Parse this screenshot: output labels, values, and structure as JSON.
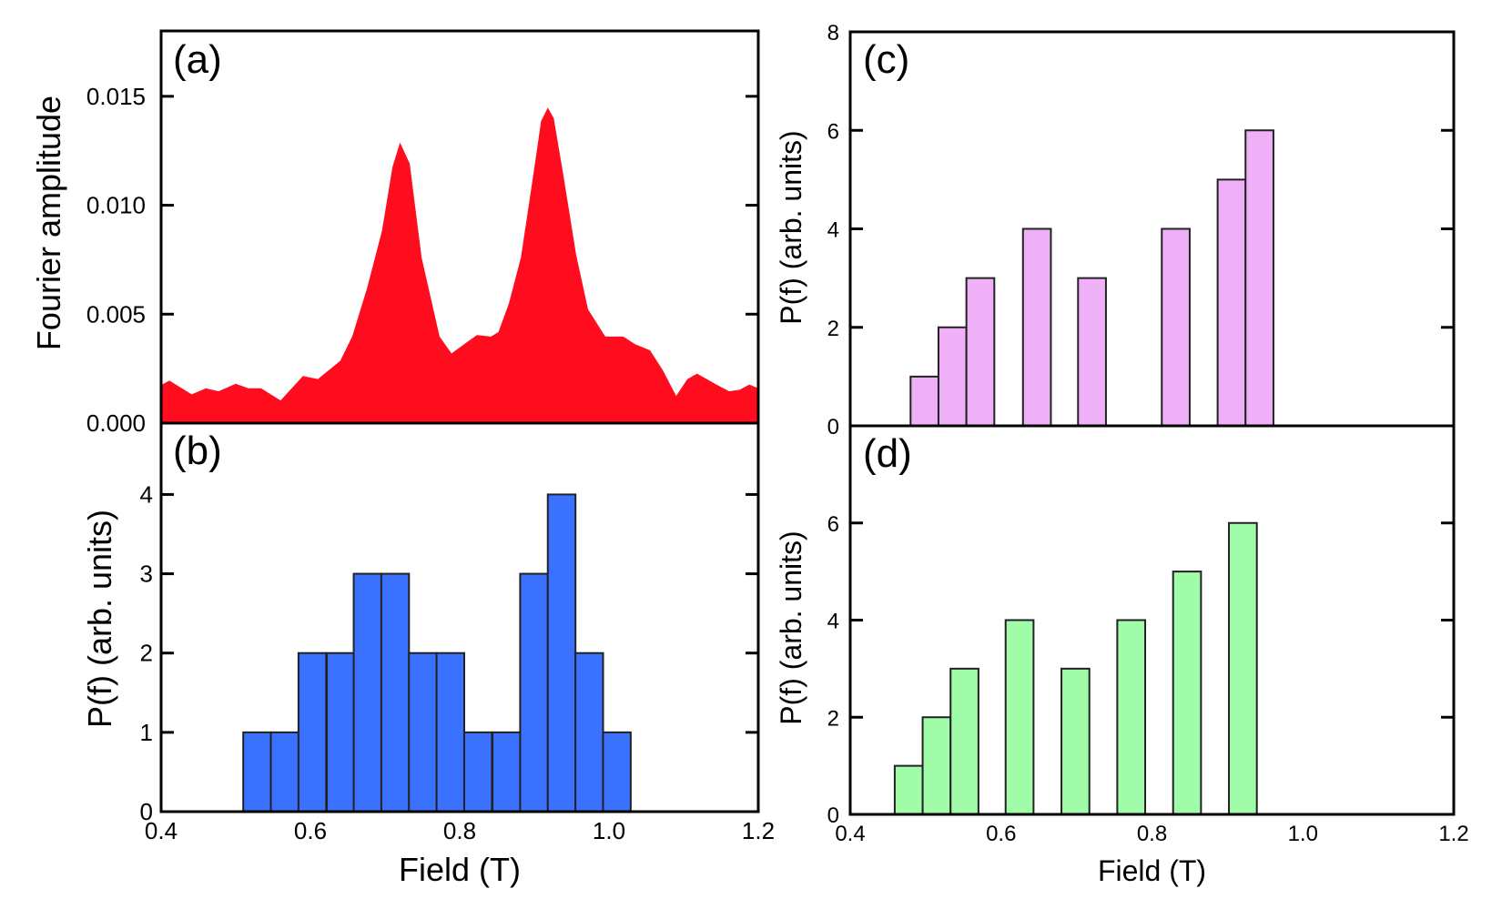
{
  "chart_data": [
    {
      "panel": "(a)",
      "type": "area",
      "xlabel": "",
      "ylabel": "Fourier amplitude",
      "xlim": [
        0.4,
        1.2
      ],
      "ylim": [
        0,
        0.018
      ],
      "yticks": [
        "0.000",
        "0.005",
        "0.010",
        "0.015"
      ],
      "ytick_values": [
        0,
        0.005,
        0.01,
        0.015
      ],
      "color": "#ff0d1e",
      "x": [
        0.4,
        0.411,
        0.441,
        0.46,
        0.477,
        0.5,
        0.517,
        0.534,
        0.56,
        0.59,
        0.61,
        0.64,
        0.656,
        0.676,
        0.696,
        0.71,
        0.72,
        0.733,
        0.749,
        0.773,
        0.789,
        0.806,
        0.823,
        0.842,
        0.852,
        0.866,
        0.882,
        0.899,
        0.909,
        0.918,
        0.926,
        0.939,
        0.956,
        0.972,
        0.995,
        1.019,
        1.035,
        1.055,
        1.072,
        1.09,
        1.105,
        1.118,
        1.142,
        1.161,
        1.175,
        1.188,
        1.2
      ],
      "y": [
        0.00174,
        0.00195,
        0.00132,
        0.0016,
        0.00146,
        0.00181,
        0.0016,
        0.0016,
        0.00104,
        0.00216,
        0.00202,
        0.00286,
        0.00397,
        0.0062,
        0.00884,
        0.01177,
        0.01288,
        0.01191,
        0.00759,
        0.00397,
        0.0032,
        0.00362,
        0.00404,
        0.00397,
        0.00418,
        0.0055,
        0.00759,
        0.01149,
        0.01386,
        0.01448,
        0.014,
        0.01135,
        0.00773,
        0.00522,
        0.00397,
        0.00397,
        0.00362,
        0.00334,
        0.00244,
        0.00125,
        0.00202,
        0.00227,
        0.00181,
        0.00146,
        0.00153,
        0.00177,
        0.0016
      ]
    },
    {
      "panel": "(b)",
      "type": "bar",
      "xlabel": "Field (T)",
      "ylabel": "P(f) (arb. units)",
      "xlim": [
        0.4,
        1.2
      ],
      "ylim": [
        0,
        4.9
      ],
      "xticks": [
        "0.4",
        "0.6",
        "0.8",
        "1.0",
        "1.2"
      ],
      "xtick_values": [
        0.4,
        0.6,
        0.8,
        1.0,
        1.2
      ],
      "yticks": [
        "0",
        "1",
        "2",
        "3",
        "4"
      ],
      "ytick_values": [
        0,
        1,
        2,
        3,
        4
      ],
      "color": "#3a72ff",
      "bin_width": 0.0371,
      "bin_left": [
        0.51,
        0.547,
        0.584,
        0.622,
        0.658,
        0.695,
        0.732,
        0.769,
        0.806,
        0.844,
        0.881,
        0.918,
        0.955,
        0.992
      ],
      "values": [
        1,
        1,
        2,
        2,
        3,
        3,
        2,
        2,
        1,
        1,
        3,
        4,
        2,
        1
      ]
    },
    {
      "panel": "(c)",
      "type": "bar",
      "xlabel": "",
      "ylabel": "P(f) (arb. units)",
      "xlim": [
        0.4,
        1.2
      ],
      "ylim": [
        0,
        8
      ],
      "yticks": [
        "0",
        "2",
        "4",
        "6",
        "8"
      ],
      "ytick_values": [
        0,
        2,
        4,
        6,
        8
      ],
      "color": "#f0b0f8",
      "bin_width": 0.037,
      "bin_left": [
        0.48,
        0.517,
        0.554,
        0.629,
        0.702,
        0.813,
        0.887,
        0.924
      ],
      "values": [
        1,
        2,
        3,
        4,
        3,
        4,
        5,
        6
      ]
    },
    {
      "panel": "(d)",
      "type": "bar",
      "xlabel": "Field (T)",
      "ylabel": "P(f) (arb. units)",
      "xlim": [
        0.4,
        1.2
      ],
      "ylim": [
        0,
        8
      ],
      "xticks": [
        "0.4",
        "0.6",
        "0.8",
        "1.0",
        "1.2"
      ],
      "xtick_values": [
        0.4,
        0.6,
        0.8,
        1.0,
        1.2
      ],
      "yticks": [
        "0",
        "2",
        "4",
        "6"
      ],
      "ytick_values": [
        0,
        2,
        4,
        6
      ],
      "color": "#a0fca8",
      "bin_width": 0.037,
      "bin_left": [
        0.459,
        0.496,
        0.533,
        0.606,
        0.68,
        0.754,
        0.828,
        0.902
      ],
      "values": [
        1,
        2,
        3,
        4,
        3,
        4,
        5,
        6
      ]
    }
  ]
}
